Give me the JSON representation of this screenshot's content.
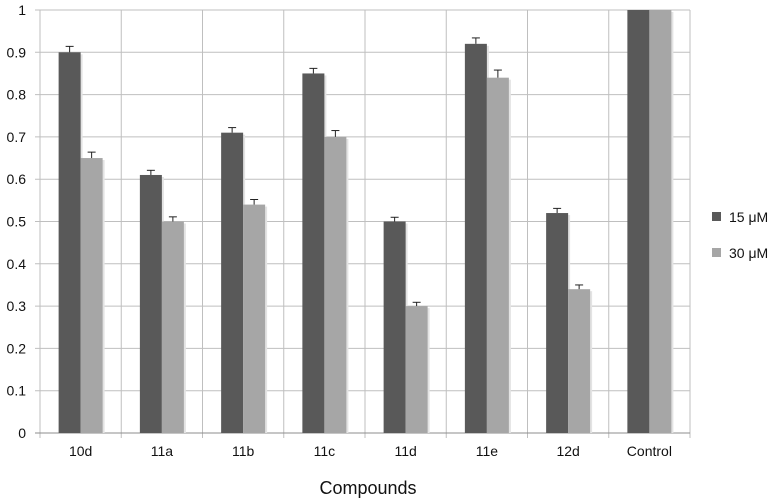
{
  "chart_data": {
    "type": "bar",
    "title": "",
    "xlabel": "Compounds",
    "ylabel": "",
    "ylim": [
      0,
      1
    ],
    "yticks": [
      "0",
      "0.1",
      "0.2",
      "0.3",
      "0.4",
      "0.5",
      "0.6",
      "0.7",
      "0.8",
      "0.9",
      "1"
    ],
    "categories": [
      "10d",
      "11a",
      "11b",
      "11c",
      "11d",
      "11e",
      "12d",
      "Control"
    ],
    "series": [
      {
        "name": "15 μM",
        "color": "#595959",
        "values": [
          0.9,
          0.61,
          0.71,
          0.85,
          0.5,
          0.92,
          0.52,
          1.0
        ],
        "errors": [
          0.014,
          0.011,
          0.012,
          0.012,
          0.01,
          0.014,
          0.011,
          0
        ]
      },
      {
        "name": "30 μM",
        "color": "#a6a6a6",
        "values": [
          0.65,
          0.5,
          0.54,
          0.7,
          0.3,
          0.84,
          0.34,
          1.0
        ],
        "errors": [
          0.014,
          0.011,
          0.012,
          0.015,
          0.009,
          0.018,
          0.01,
          0
        ]
      }
    ],
    "grid": true,
    "legend_position": "right"
  }
}
